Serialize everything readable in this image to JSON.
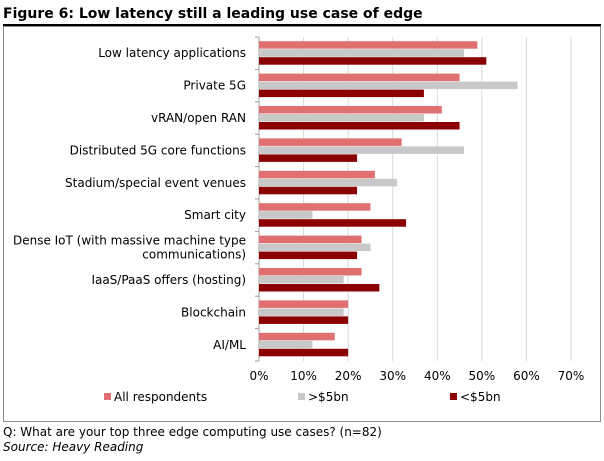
{
  "figure_title": "Figure 6: Low latency still a leading use case of edge",
  "footnote": "Q: What are your top three edge computing use cases? (n=82)",
  "source": "Source: Heavy Reading",
  "colors": {
    "all": "#e07070",
    "over5bn": "#c8c8c8",
    "under5bn": "#8b0000"
  },
  "chart_data": {
    "type": "bar",
    "orientation": "horizontal",
    "title": "",
    "xlabel": "",
    "ylabel": "",
    "xlim": [
      0,
      70
    ],
    "x_ticks": [
      "0%",
      "10%",
      "20%",
      "30%",
      "40%",
      "50%",
      "60%",
      "70%"
    ],
    "grid": true,
    "legend_position": "bottom",
    "categories": [
      "Low latency applications",
      "Private 5G",
      "vRAN/open RAN",
      "Distributed 5G core functions",
      "Stadium/special event venues",
      "Smart city",
      "Dense IoT (with massive machine type communications)",
      "IaaS/PaaS offers (hosting)",
      "Blockchain",
      "AI/ML"
    ],
    "category_label_lines": [
      [
        "Low latency applications"
      ],
      [
        "Private 5G"
      ],
      [
        "vRAN/open RAN"
      ],
      [
        "Distributed 5G core functions"
      ],
      [
        "Stadium/special event venues"
      ],
      [
        "Smart city"
      ],
      [
        "Dense IoT (with massive machine type",
        "communications)"
      ],
      [
        "IaaS/PaaS offers (hosting)"
      ],
      [
        "Blockchain"
      ],
      [
        "AI/ML"
      ]
    ],
    "series": [
      {
        "name": "All respondents",
        "values": [
          49,
          45,
          41,
          32,
          26,
          25,
          23,
          23,
          20,
          17
        ]
      },
      {
        "name": ">$5bn",
        "values": [
          46,
          58,
          37,
          46,
          31,
          12,
          25,
          19,
          19,
          12
        ]
      },
      {
        "name": "<$5bn",
        "values": [
          51,
          37,
          45,
          22,
          22,
          33,
          22,
          27,
          20,
          20
        ]
      }
    ]
  }
}
